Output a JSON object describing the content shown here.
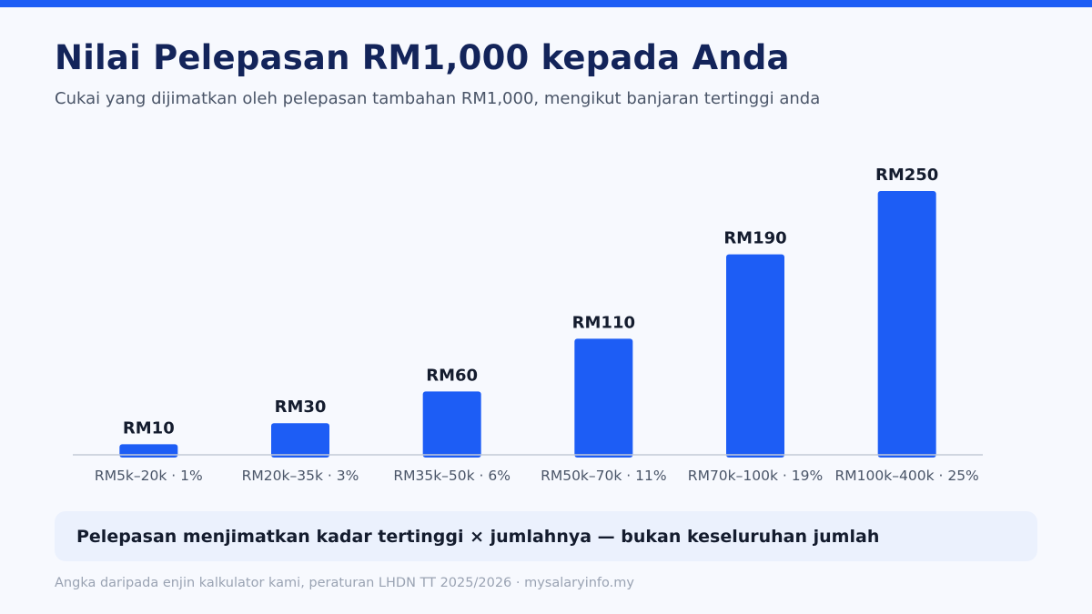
{
  "header": {
    "title": "Nilai Pelepasan RM1,000 kepada Anda",
    "subtitle": "Cukai yang dijimatkan oleh pelepasan tambahan RM1,000, mengikut banjaran tertinggi anda"
  },
  "chart_data": {
    "type": "bar",
    "categories": [
      "RM5k–20k · 1%",
      "RM20k–35k · 3%",
      "RM35k–50k · 6%",
      "RM50k–70k · 11%",
      "RM70k–100k · 19%",
      "RM100k–400k · 25%"
    ],
    "values": [
      10,
      30,
      60,
      110,
      190,
      250
    ],
    "data_labels": [
      "RM10",
      "RM30",
      "RM60",
      "RM110",
      "RM190",
      "RM250"
    ],
    "ylim": [
      0,
      250
    ],
    "grid": false,
    "legend": "none",
    "bar_color": "#1d5df5"
  },
  "callout": {
    "text": "Pelepasan menjimatkan kadar tertinggi × jumlahnya — bukan keseluruhan jumlah"
  },
  "footer": {
    "text": "Angka daripada enjin kalkulator kami, peraturan LHDN TT 2025/2026 · mysalaryinfo.my"
  },
  "colors": {
    "accent": "#1d5df5",
    "title": "#13245a",
    "background": "#f7f9fe",
    "callout_bg": "#ebf1fd"
  }
}
